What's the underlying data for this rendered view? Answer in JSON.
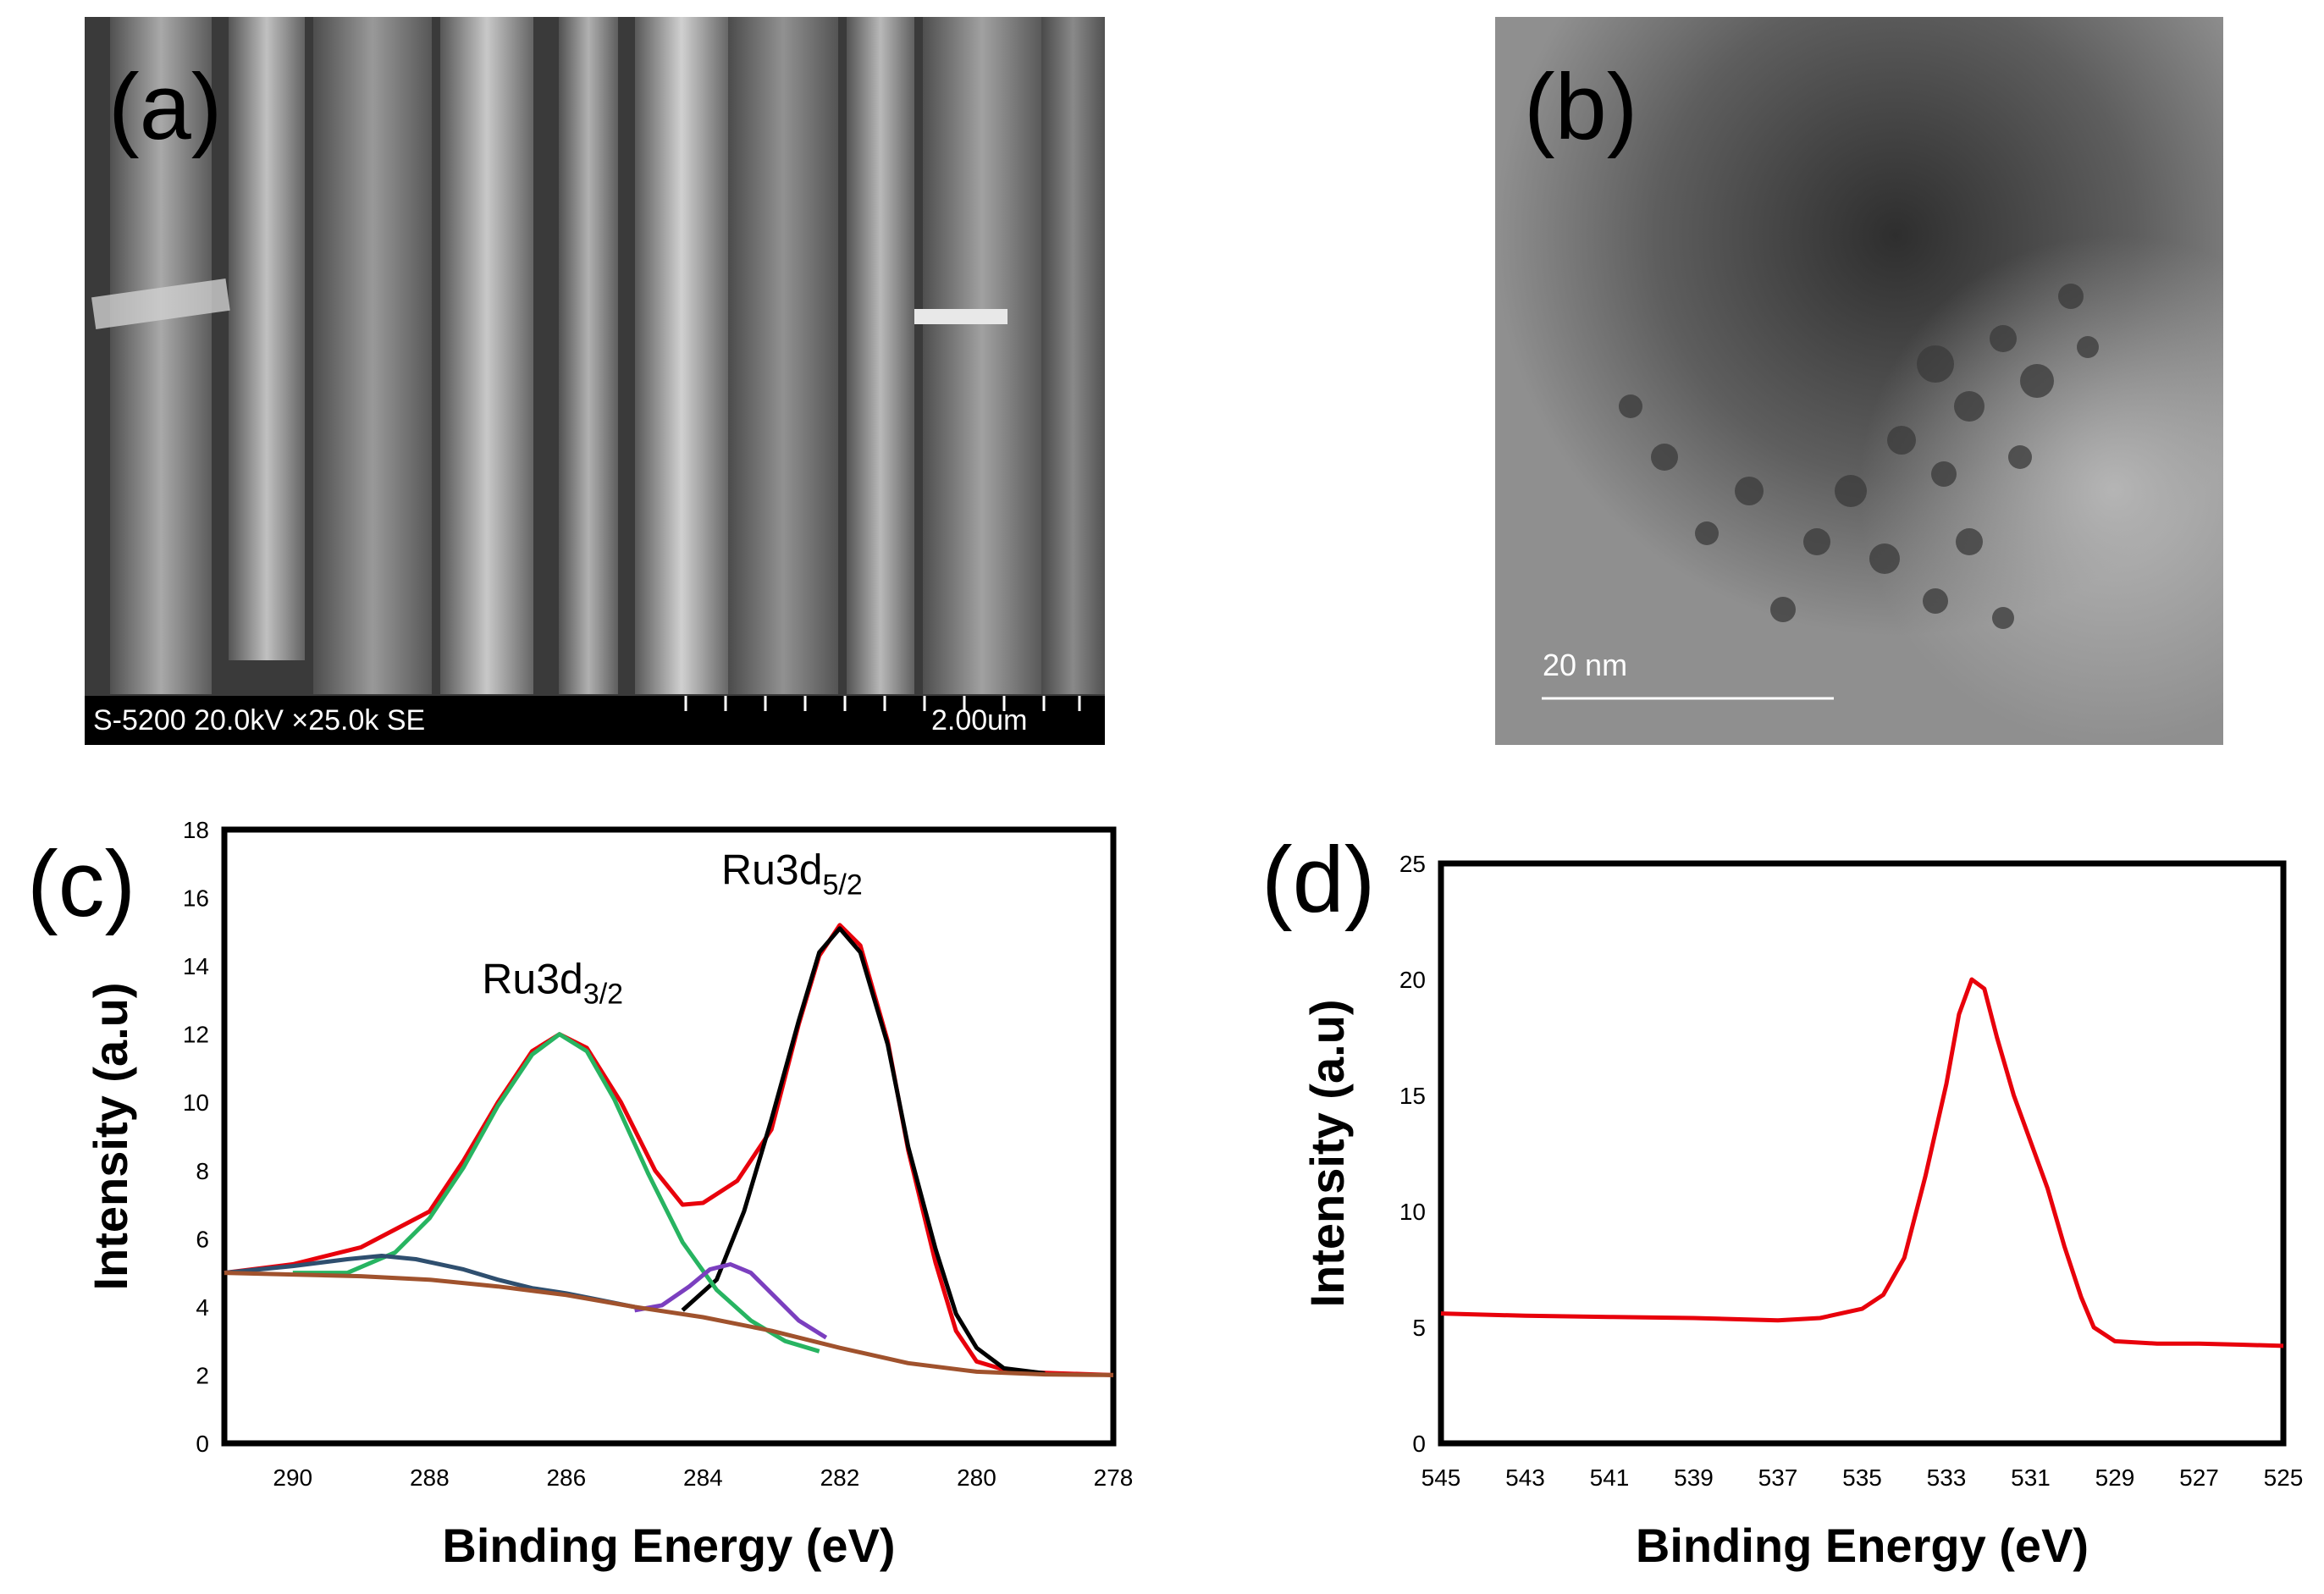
{
  "panels": {
    "a": {
      "letter": "(a)",
      "info_text": "S-5200 20.0kV ×25.0k SE",
      "scale_text": "2.00um"
    },
    "b": {
      "letter": "(b)",
      "scale_text": "20 nm"
    },
    "c": {
      "letter": "(c)"
    },
    "d": {
      "letter": "(d)"
    }
  },
  "chart_data": [
    {
      "type": "line",
      "panel": "c",
      "xlabel": "Binding Energy (eV)",
      "ylabel": "Intensity (a.u)",
      "xlim": [
        291,
        278
      ],
      "ylim": [
        0,
        18
      ],
      "x_ticks": [
        "290",
        "288",
        "286",
        "284",
        "282",
        "280",
        "278"
      ],
      "y_ticks": [
        "0",
        "2",
        "4",
        "6",
        "8",
        "10",
        "12",
        "14",
        "16",
        "18"
      ],
      "annotations": [
        {
          "text": "Ru3d",
          "sub": "3/2",
          "x": 286.2,
          "y": 13.2
        },
        {
          "text": "Ru3d",
          "sub": "5/2",
          "x": 282.7,
          "y": 16.4
        }
      ],
      "series": [
        {
          "color": "#e8000b",
          "points": [
            [
              291,
              5.0
            ],
            [
              290,
              5.25
            ],
            [
              289,
              5.75
            ],
            [
              288,
              6.8
            ],
            [
              287.5,
              8.3
            ],
            [
              287,
              10.0
            ],
            [
              286.5,
              11.5
            ],
            [
              286.1,
              12.0
            ],
            [
              285.7,
              11.6
            ],
            [
              285.2,
              10.0
            ],
            [
              284.7,
              8.0
            ],
            [
              284.3,
              7.0
            ],
            [
              284,
              7.05
            ],
            [
              283.5,
              7.7
            ],
            [
              283,
              9.2
            ],
            [
              282.6,
              12.3
            ],
            [
              282.3,
              14.3
            ],
            [
              282,
              15.2
            ],
            [
              281.7,
              14.6
            ],
            [
              281.3,
              11.8
            ],
            [
              281,
              8.6
            ],
            [
              280.6,
              5.3
            ],
            [
              280.3,
              3.3
            ],
            [
              280,
              2.4
            ],
            [
              279.5,
              2.1
            ],
            [
              278,
              2.0
            ]
          ]
        },
        {
          "color": "#000000",
          "points": [
            [
              284.3,
              3.9
            ],
            [
              283.8,
              4.8
            ],
            [
              283.4,
              6.8
            ],
            [
              283,
              9.5
            ],
            [
              282.6,
              12.4
            ],
            [
              282.3,
              14.4
            ],
            [
              282,
              15.1
            ],
            [
              281.7,
              14.4
            ],
            [
              281.3,
              11.7
            ],
            [
              281,
              8.7
            ],
            [
              280.6,
              5.7
            ],
            [
              280.3,
              3.8
            ],
            [
              280,
              2.8
            ],
            [
              279.6,
              2.2
            ],
            [
              279,
              2.05
            ]
          ]
        },
        {
          "color": "#27b461",
          "points": [
            [
              290,
              5.0
            ],
            [
              289.2,
              5.0
            ],
            [
              288.5,
              5.6
            ],
            [
              288,
              6.6
            ],
            [
              287.5,
              8.1
            ],
            [
              287,
              9.9
            ],
            [
              286.5,
              11.4
            ],
            [
              286.1,
              12.0
            ],
            [
              285.7,
              11.5
            ],
            [
              285.3,
              10.1
            ],
            [
              284.8,
              7.9
            ],
            [
              284.3,
              5.9
            ],
            [
              283.8,
              4.5
            ],
            [
              283.3,
              3.6
            ],
            [
              282.8,
              3.0
            ],
            [
              282.3,
              2.7
            ]
          ]
        },
        {
          "color": "#7b3fbf",
          "points": [
            [
              285,
              3.9
            ],
            [
              284.6,
              4.05
            ],
            [
              284.2,
              4.6
            ],
            [
              283.9,
              5.1
            ],
            [
              283.6,
              5.25
            ],
            [
              283.3,
              5.0
            ],
            [
              283,
              4.4
            ],
            [
              282.6,
              3.6
            ],
            [
              282.2,
              3.1
            ]
          ]
        },
        {
          "color": "#2f4f6f",
          "points": [
            [
              291,
              5.0
            ],
            [
              290,
              5.2
            ],
            [
              289.2,
              5.4
            ],
            [
              288.7,
              5.5
            ],
            [
              288.2,
              5.4
            ],
            [
              287.5,
              5.1
            ],
            [
              287,
              4.8
            ],
            [
              286.5,
              4.55
            ],
            [
              286,
              4.4
            ],
            [
              285.5,
              4.2
            ],
            [
              285,
              4.0
            ]
          ]
        },
        {
          "color": "#a0522d",
          "points": [
            [
              291,
              5.0
            ],
            [
              290,
              4.95
            ],
            [
              289,
              4.9
            ],
            [
              288,
              4.8
            ],
            [
              287,
              4.6
            ],
            [
              286,
              4.35
            ],
            [
              285,
              4.0
            ],
            [
              284,
              3.7
            ],
            [
              283,
              3.3
            ],
            [
              282,
              2.8
            ],
            [
              281,
              2.35
            ],
            [
              280,
              2.1
            ],
            [
              279,
              2.02
            ],
            [
              278,
              2.0
            ]
          ]
        }
      ]
    },
    {
      "type": "line",
      "panel": "d",
      "xlabel": "Binding Energy (eV)",
      "ylabel": "Intensity (a.u)",
      "xlim": [
        545,
        525
      ],
      "ylim": [
        0,
        25
      ],
      "x_ticks": [
        "545",
        "543",
        "541",
        "539",
        "537",
        "535",
        "533",
        "531",
        "529",
        "527",
        "525"
      ],
      "y_ticks": [
        "0",
        "5",
        "10",
        "15",
        "20",
        "25"
      ],
      "series": [
        {
          "color": "#e8000b",
          "points": [
            [
              545,
              5.6
            ],
            [
              543,
              5.5
            ],
            [
              541,
              5.45
            ],
            [
              539,
              5.4
            ],
            [
              537,
              5.3
            ],
            [
              536,
              5.4
            ],
            [
              535,
              5.8
            ],
            [
              534.5,
              6.4
            ],
            [
              534,
              8.0
            ],
            [
              533.5,
              11.5
            ],
            [
              533,
              15.5
            ],
            [
              532.7,
              18.5
            ],
            [
              532.4,
              20.0
            ],
            [
              532.1,
              19.6
            ],
            [
              531.8,
              17.5
            ],
            [
              531.4,
              15.0
            ],
            [
              531,
              13.0
            ],
            [
              530.6,
              11.0
            ],
            [
              530.2,
              8.5
            ],
            [
              529.8,
              6.3
            ],
            [
              529.5,
              5.0
            ],
            [
              529,
              4.4
            ],
            [
              528,
              4.3
            ],
            [
              527,
              4.3
            ],
            [
              526,
              4.25
            ],
            [
              525,
              4.2
            ]
          ]
        }
      ]
    }
  ]
}
